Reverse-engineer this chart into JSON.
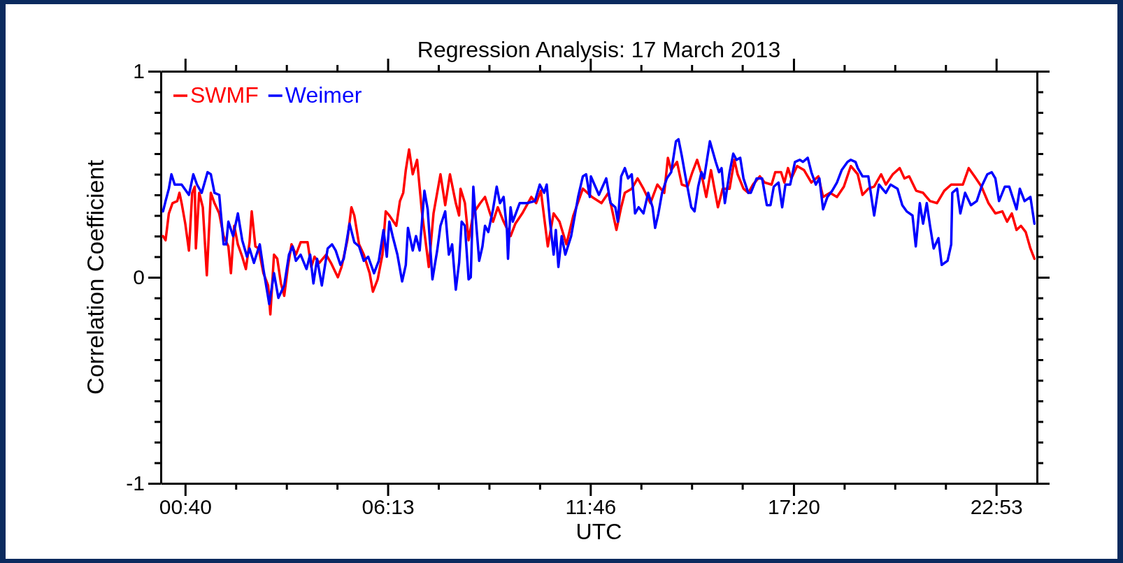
{
  "chart_data": {
    "type": "line",
    "title": "Regression Analysis: 17 March 2013",
    "xlabel": "UTC",
    "ylabel": "Correlation Coefficient",
    "xlim": [
      0,
      24
    ],
    "ylim": [
      -1,
      1
    ],
    "xticks": [
      {
        "value": 0.6667,
        "label": "00:40"
      },
      {
        "value": 2.054,
        "label": null
      },
      {
        "value": 3.442,
        "label": null
      },
      {
        "value": 4.829,
        "label": null
      },
      {
        "value": 6.2167,
        "label": "06:13"
      },
      {
        "value": 7.604,
        "label": null
      },
      {
        "value": 8.992,
        "label": null
      },
      {
        "value": 10.379,
        "label": null
      },
      {
        "value": 11.7667,
        "label": "11:46"
      },
      {
        "value": 13.154,
        "label": null
      },
      {
        "value": 14.542,
        "label": null
      },
      {
        "value": 15.929,
        "label": null
      },
      {
        "value": 17.3333,
        "label": "17:20"
      },
      {
        "value": 18.721,
        "label": null
      },
      {
        "value": 20.108,
        "label": null
      },
      {
        "value": 21.496,
        "label": null
      },
      {
        "value": 22.8833,
        "label": "22:53"
      }
    ],
    "yticks": [
      -1,
      {
        "value": -0.9,
        "label": null
      },
      {
        "value": -0.8,
        "label": null
      },
      {
        "value": -0.7,
        "label": null
      },
      {
        "value": -0.6,
        "label": null
      },
      {
        "value": -0.5,
        "label": null
      },
      {
        "value": -0.4,
        "label": null
      },
      {
        "value": -0.3,
        "label": null
      },
      {
        "value": -0.2,
        "label": null
      },
      {
        "value": -0.1,
        "label": null
      },
      0,
      {
        "value": 0.1,
        "label": null
      },
      {
        "value": 0.2,
        "label": null
      },
      {
        "value": 0.3,
        "label": null
      },
      {
        "value": 0.4,
        "label": null
      },
      {
        "value": 0.5,
        "label": null
      },
      {
        "value": 0.6,
        "label": null
      },
      {
        "value": 0.7,
        "label": null
      },
      {
        "value": 0.8,
        "label": null
      },
      {
        "value": 0.9,
        "label": null
      },
      1
    ],
    "legend": "top left",
    "grid": false,
    "marker": "none",
    "line_style": "solid",
    "series": [
      {
        "name": "SWMF",
        "color": "#ff0000",
        "x": [
          0.06,
          0.13,
          0.22,
          0.32,
          0.45,
          0.51,
          0.57,
          0.67,
          0.77,
          0.86,
          0.93,
          0.96,
          1.05,
          1.15,
          1.26,
          1.37,
          1.47,
          1.6,
          1.72,
          1.85,
          1.92,
          2.01,
          2.11,
          2.23,
          2.33,
          2.43,
          2.49,
          2.59,
          2.68,
          2.81,
          2.94,
          3.0,
          3.1,
          3.19,
          3.29,
          3.38,
          3.48,
          3.58,
          3.7,
          3.83,
          4.02,
          4.12,
          4.21,
          4.34,
          4.53,
          4.66,
          4.85,
          4.95,
          5.11,
          5.22,
          5.3,
          5.43,
          5.56,
          5.72,
          5.81,
          5.94,
          6.07,
          6.16,
          6.26,
          6.45,
          6.55,
          6.64,
          6.71,
          6.8,
          6.9,
          7.02,
          7.15,
          7.34,
          7.47,
          7.66,
          7.79,
          7.92,
          8.08,
          8.17,
          8.21,
          8.33,
          8.43,
          8.56,
          8.75,
          8.88,
          9.0,
          9.1,
          9.23,
          9.39,
          9.58,
          9.71,
          9.9,
          10.15,
          10.28,
          10.41,
          10.6,
          10.76,
          10.92,
          11.11,
          11.3,
          11.56,
          11.81,
          12.07,
          12.26,
          12.48,
          12.61,
          12.71,
          12.9,
          13.06,
          13.22,
          13.41,
          13.6,
          13.79,
          13.89,
          13.98,
          14.14,
          14.27,
          14.43,
          14.56,
          14.69,
          14.81,
          14.94,
          15.07,
          15.26,
          15.39,
          15.58,
          15.71,
          15.8,
          15.96,
          16.09,
          16.22,
          16.41,
          16.54,
          16.73,
          16.83,
          16.99,
          17.08,
          17.18,
          17.27,
          17.43,
          17.62,
          17.82,
          18.01,
          18.14,
          18.33,
          18.52,
          18.71,
          18.9,
          19.09,
          19.22,
          19.38,
          19.54,
          19.73,
          19.86,
          20.05,
          20.24,
          20.37,
          20.5,
          20.69,
          20.88,
          21.07,
          21.26,
          21.46,
          21.65,
          21.97,
          22.13,
          22.29,
          22.48,
          22.67,
          22.86,
          23.05,
          23.18,
          23.31,
          23.44,
          23.56,
          23.69,
          23.82,
          23.93
        ],
        "values": [
          0.2,
          0.18,
          0.31,
          0.36,
          0.37,
          0.41,
          0.36,
          0.26,
          0.13,
          0.41,
          0.44,
          0.14,
          0.41,
          0.34,
          0.01,
          0.41,
          0.36,
          0.31,
          0.2,
          0.15,
          0.02,
          0.25,
          0.16,
          0.1,
          0.04,
          0.17,
          0.32,
          0.15,
          0.14,
          0.02,
          -0.04,
          -0.18,
          0.11,
          0.09,
          -0.03,
          -0.09,
          0.05,
          0.16,
          0.11,
          0.17,
          0.17,
          0.05,
          0.1,
          0.07,
          0.11,
          0.07,
          0.0,
          0.05,
          0.18,
          0.34,
          0.3,
          0.16,
          0.11,
          0.02,
          -0.07,
          -0.01,
          0.11,
          0.32,
          0.3,
          0.25,
          0.37,
          0.41,
          0.52,
          0.62,
          0.5,
          0.57,
          0.32,
          0.05,
          0.31,
          0.5,
          0.35,
          0.5,
          0.36,
          0.3,
          0.43,
          0.36,
          0.18,
          0.31,
          0.36,
          0.39,
          0.32,
          0.27,
          0.34,
          0.27,
          0.2,
          0.26,
          0.31,
          0.39,
          0.36,
          0.42,
          0.15,
          0.31,
          0.27,
          0.16,
          0.3,
          0.43,
          0.39,
          0.36,
          0.41,
          0.23,
          0.34,
          0.41,
          0.43,
          0.48,
          0.43,
          0.36,
          0.45,
          0.41,
          0.58,
          0.52,
          0.56,
          0.45,
          0.44,
          0.51,
          0.57,
          0.5,
          0.39,
          0.52,
          0.34,
          0.43,
          0.43,
          0.57,
          0.5,
          0.43,
          0.41,
          0.45,
          0.49,
          0.46,
          0.45,
          0.51,
          0.51,
          0.46,
          0.53,
          0.48,
          0.54,
          0.52,
          0.46,
          0.49,
          0.39,
          0.41,
          0.39,
          0.44,
          0.54,
          0.5,
          0.4,
          0.43,
          0.44,
          0.5,
          0.45,
          0.5,
          0.53,
          0.48,
          0.49,
          0.42,
          0.41,
          0.37,
          0.36,
          0.42,
          0.45,
          0.45,
          0.53,
          0.49,
          0.44,
          0.36,
          0.31,
          0.32,
          0.27,
          0.31,
          0.23,
          0.25,
          0.22,
          0.14,
          0.09
        ]
      },
      {
        "name": "Weimer",
        "color": "#0000ff",
        "x": [
          0.06,
          0.13,
          0.22,
          0.29,
          0.38,
          0.57,
          0.77,
          0.89,
          0.99,
          1.12,
          1.28,
          1.37,
          1.47,
          1.6,
          1.72,
          1.79,
          1.85,
          1.98,
          2.11,
          2.23,
          2.36,
          2.43,
          2.55,
          2.71,
          2.81,
          2.97,
          3.1,
          3.22,
          3.38,
          3.51,
          3.61,
          3.7,
          3.83,
          3.99,
          4.09,
          4.18,
          4.28,
          4.41,
          4.57,
          4.69,
          4.79,
          4.92,
          5.01,
          5.17,
          5.3,
          5.43,
          5.56,
          5.68,
          5.84,
          5.97,
          6.1,
          6.19,
          6.26,
          6.35,
          6.48,
          6.61,
          6.71,
          6.77,
          6.9,
          6.99,
          7.09,
          7.22,
          7.31,
          7.44,
          7.57,
          7.66,
          7.79,
          7.89,
          7.98,
          8.08,
          8.17,
          8.24,
          8.33,
          8.43,
          8.49,
          8.56,
          8.62,
          8.72,
          8.81,
          8.88,
          8.97,
          9.1,
          9.2,
          9.29,
          9.39,
          9.48,
          9.51,
          9.58,
          9.64,
          9.83,
          10.03,
          10.25,
          10.38,
          10.5,
          10.57,
          10.66,
          10.76,
          10.82,
          10.89,
          10.98,
          11.08,
          11.24,
          11.43,
          11.56,
          11.65,
          11.75,
          11.78,
          12.0,
          12.2,
          12.32,
          12.45,
          12.52,
          12.61,
          12.71,
          12.8,
          12.9,
          12.99,
          13.09,
          13.22,
          13.35,
          13.47,
          13.54,
          13.63,
          13.73,
          13.86,
          13.98,
          14.11,
          14.18,
          14.27,
          14.37,
          14.53,
          14.62,
          14.72,
          14.81,
          14.88,
          15.04,
          15.2,
          15.29,
          15.36,
          15.45,
          15.58,
          15.68,
          15.77,
          15.87,
          15.96,
          16.09,
          16.16,
          16.32,
          16.47,
          16.6,
          16.7,
          16.79,
          16.92,
          17.02,
          17.11,
          17.24,
          17.37,
          17.5,
          17.59,
          17.72,
          17.82,
          17.94,
          18.04,
          18.14,
          18.26,
          18.39,
          18.52,
          18.65,
          18.81,
          18.9,
          19.03,
          19.09,
          19.22,
          19.38,
          19.48,
          19.54,
          19.67,
          19.86,
          19.99,
          20.18,
          20.31,
          20.43,
          20.59,
          20.68,
          20.79,
          20.88,
          20.98,
          21.07,
          21.17,
          21.3,
          21.39,
          21.55,
          21.65,
          21.68,
          21.81,
          21.9,
          22.03,
          22.19,
          22.35,
          22.48,
          22.64,
          22.76,
          22.86,
          22.96,
          23.12,
          23.24,
          23.44,
          23.53,
          23.66,
          23.82,
          23.93
        ],
        "values": [
          0.32,
          0.37,
          0.43,
          0.5,
          0.45,
          0.45,
          0.4,
          0.5,
          0.45,
          0.41,
          0.51,
          0.5,
          0.41,
          0.4,
          0.16,
          0.16,
          0.27,
          0.2,
          0.31,
          0.18,
          0.1,
          0.14,
          0.07,
          0.16,
          0.04,
          -0.13,
          0.02,
          -0.1,
          -0.04,
          0.11,
          0.15,
          0.08,
          0.11,
          0.04,
          0.11,
          -0.03,
          0.09,
          -0.04,
          0.14,
          0.16,
          0.13,
          0.06,
          0.09,
          0.26,
          0.17,
          0.15,
          0.08,
          0.1,
          0.02,
          0.08,
          0.23,
          0.1,
          0.27,
          0.2,
          0.11,
          -0.02,
          0.06,
          0.24,
          0.13,
          0.2,
          0.13,
          0.42,
          0.33,
          -0.01,
          0.13,
          0.25,
          0.32,
          0.11,
          0.16,
          -0.06,
          0.07,
          0.27,
          0.25,
          -0.01,
          0.0,
          0.44,
          0.3,
          0.08,
          0.15,
          0.25,
          0.22,
          0.33,
          0.44,
          0.36,
          0.39,
          0.23,
          0.09,
          0.34,
          0.27,
          0.36,
          0.36,
          0.37,
          0.45,
          0.41,
          0.45,
          0.27,
          0.11,
          0.23,
          0.05,
          0.2,
          0.11,
          0.2,
          0.39,
          0.49,
          0.5,
          0.39,
          0.49,
          0.4,
          0.48,
          0.36,
          0.34,
          0.27,
          0.49,
          0.53,
          0.48,
          0.5,
          0.31,
          0.34,
          0.31,
          0.41,
          0.34,
          0.24,
          0.31,
          0.41,
          0.48,
          0.51,
          0.66,
          0.67,
          0.59,
          0.49,
          0.34,
          0.32,
          0.44,
          0.51,
          0.48,
          0.66,
          0.56,
          0.51,
          0.53,
          0.36,
          0.51,
          0.6,
          0.57,
          0.58,
          0.48,
          0.41,
          0.41,
          0.48,
          0.48,
          0.35,
          0.35,
          0.44,
          0.46,
          0.34,
          0.45,
          0.45,
          0.56,
          0.57,
          0.56,
          0.58,
          0.51,
          0.45,
          0.48,
          0.33,
          0.39,
          0.42,
          0.46,
          0.52,
          0.56,
          0.57,
          0.56,
          0.53,
          0.49,
          0.49,
          0.37,
          0.3,
          0.45,
          0.41,
          0.45,
          0.43,
          0.35,
          0.32,
          0.3,
          0.15,
          0.36,
          0.26,
          0.36,
          0.25,
          0.14,
          0.19,
          0.06,
          0.08,
          0.16,
          0.41,
          0.43,
          0.31,
          0.41,
          0.35,
          0.37,
          0.44,
          0.5,
          0.51,
          0.48,
          0.37,
          0.44,
          0.44,
          0.33,
          0.43,
          0.37,
          0.39,
          0.26
        ]
      }
    ]
  }
}
